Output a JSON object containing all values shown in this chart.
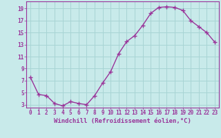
{
  "xlabel": "Windchill (Refroidissement éolien,°C)",
  "x_values": [
    0,
    1,
    2,
    3,
    4,
    5,
    6,
    7,
    8,
    9,
    10,
    11,
    12,
    13,
    14,
    15,
    16,
    17,
    18,
    19,
    20,
    21,
    22,
    23
  ],
  "y_values": [
    7.5,
    4.7,
    4.5,
    3.2,
    2.8,
    3.5,
    3.2,
    3.0,
    4.5,
    6.6,
    8.5,
    11.5,
    13.5,
    14.5,
    16.2,
    18.2,
    19.2,
    19.3,
    19.2,
    18.7,
    17.0,
    16.0,
    15.0,
    13.4
  ],
  "line_color": "#993399",
  "marker": "+",
  "bg_color": "#c8eaea",
  "grid_color": "#a8d4d4",
  "ylim": [
    2.5,
    20.2
  ],
  "yticks": [
    3,
    5,
    7,
    9,
    11,
    13,
    15,
    17,
    19
  ],
  "xlim": [
    -0.5,
    23.5
  ],
  "xticks": [
    0,
    1,
    2,
    3,
    4,
    5,
    6,
    7,
    8,
    9,
    10,
    11,
    12,
    13,
    14,
    15,
    16,
    17,
    18,
    19,
    20,
    21,
    22,
    23
  ],
  "tick_fontsize": 5.5,
  "label_fontsize": 6.5,
  "line_width": 1.0,
  "marker_size": 4
}
